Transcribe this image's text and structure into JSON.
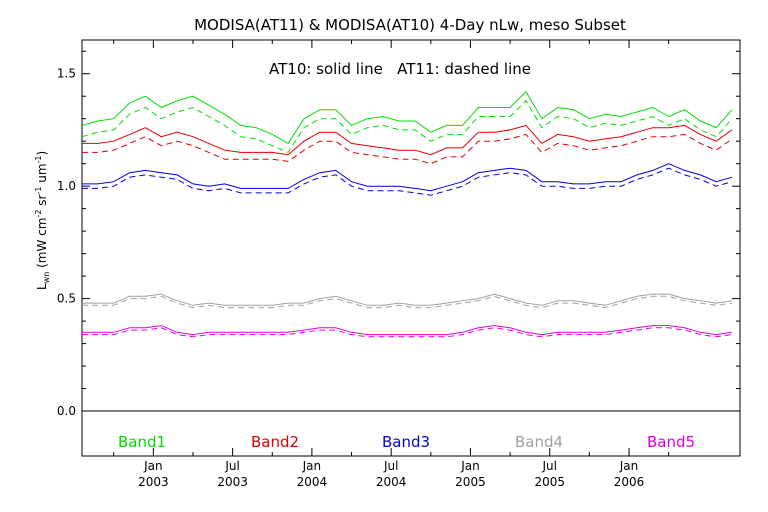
{
  "chart_data": {
    "type": "line",
    "title": "MODISA(AT11) & MODISA(AT10) 4-Day nLw, meso Subset",
    "annotation": "AT10: solid line   AT11: dashed line",
    "ylabel_main": "L",
    "ylabel_sub": "wn",
    "ylabel_rest": " (mW cm",
    "ylabel_exp1": "-2",
    "ylabel_mid1": " sr",
    "ylabel_exp2": "-1",
    "ylabel_mid2": " um",
    "ylabel_exp3": "-1",
    "ylabel_end": ")",
    "ylim": [
      -0.2,
      1.65
    ],
    "xlim": [
      2002.55,
      2006.7
    ],
    "grid": false,
    "legend_placement": "bottom",
    "yticks": [
      {
        "value": 0.0,
        "label": "0.0"
      },
      {
        "value": 0.5,
        "label": "0.5"
      },
      {
        "value": 1.0,
        "label": "1.0"
      },
      {
        "value": 1.5,
        "label": "1.5"
      }
    ],
    "xticks": [
      {
        "value": 2003.0,
        "month": "Jan",
        "year": "2003"
      },
      {
        "value": 2003.5,
        "month": "Jul",
        "year": "2003"
      },
      {
        "value": 2004.0,
        "month": "Jan",
        "year": "2004"
      },
      {
        "value": 2004.5,
        "month": "Jul",
        "year": "2004"
      },
      {
        "value": 2005.0,
        "month": "Jan",
        "year": "2005"
      },
      {
        "value": 2005.5,
        "month": "Jul",
        "year": "2005"
      },
      {
        "value": 2006.0,
        "month": "Jan",
        "year": "2006"
      }
    ],
    "x": [
      2002.55,
      2002.65,
      2002.75,
      2002.85,
      2002.95,
      2003.05,
      2003.15,
      2003.25,
      2003.35,
      2003.45,
      2003.55,
      2003.65,
      2003.75,
      2003.85,
      2003.95,
      2004.05,
      2004.15,
      2004.25,
      2004.35,
      2004.45,
      2004.55,
      2004.65,
      2004.75,
      2004.85,
      2004.95,
      2005.05,
      2005.15,
      2005.25,
      2005.35,
      2005.45,
      2005.55,
      2005.65,
      2005.75,
      2005.85,
      2005.95,
      2006.05,
      2006.15,
      2006.25,
      2006.35,
      2006.45,
      2006.55,
      2006.65
    ],
    "series": [
      {
        "name": "Band1",
        "color": "#00dd00",
        "at10": [
          1.27,
          1.29,
          1.3,
          1.37,
          1.4,
          1.35,
          1.38,
          1.4,
          1.36,
          1.32,
          1.27,
          1.26,
          1.23,
          1.19,
          1.3,
          1.34,
          1.34,
          1.27,
          1.3,
          1.31,
          1.29,
          1.29,
          1.24,
          1.27,
          1.27,
          1.35,
          1.35,
          1.35,
          1.42,
          1.3,
          1.35,
          1.34,
          1.3,
          1.32,
          1.31,
          1.33,
          1.35,
          1.31,
          1.34,
          1.29,
          1.26,
          1.34
        ],
        "at11": [
          1.22,
          1.24,
          1.25,
          1.32,
          1.35,
          1.3,
          1.33,
          1.35,
          1.31,
          1.27,
          1.22,
          1.21,
          1.18,
          1.15,
          1.26,
          1.3,
          1.3,
          1.23,
          1.26,
          1.27,
          1.25,
          1.25,
          1.2,
          1.23,
          1.23,
          1.31,
          1.31,
          1.31,
          1.38,
          1.26,
          1.31,
          1.3,
          1.26,
          1.28,
          1.27,
          1.29,
          1.31,
          1.27,
          1.3,
          1.25,
          1.22,
          1.3
        ]
      },
      {
        "name": "Band2",
        "color": "#dd0000",
        "at10": [
          1.19,
          1.19,
          1.2,
          1.23,
          1.26,
          1.22,
          1.24,
          1.22,
          1.19,
          1.16,
          1.15,
          1.15,
          1.15,
          1.14,
          1.2,
          1.24,
          1.24,
          1.19,
          1.18,
          1.17,
          1.16,
          1.16,
          1.14,
          1.17,
          1.17,
          1.24,
          1.24,
          1.25,
          1.27,
          1.19,
          1.23,
          1.22,
          1.2,
          1.21,
          1.22,
          1.24,
          1.26,
          1.26,
          1.27,
          1.23,
          1.2,
          1.25
        ],
        "at11": [
          1.15,
          1.15,
          1.16,
          1.19,
          1.22,
          1.18,
          1.2,
          1.18,
          1.15,
          1.12,
          1.12,
          1.12,
          1.12,
          1.11,
          1.16,
          1.2,
          1.2,
          1.15,
          1.14,
          1.13,
          1.12,
          1.12,
          1.1,
          1.13,
          1.13,
          1.2,
          1.2,
          1.21,
          1.23,
          1.15,
          1.19,
          1.18,
          1.16,
          1.17,
          1.18,
          1.2,
          1.22,
          1.22,
          1.23,
          1.19,
          1.16,
          1.21
        ]
      },
      {
        "name": "Band3",
        "color": "#0000dd",
        "at10": [
          1.01,
          1.01,
          1.02,
          1.06,
          1.07,
          1.06,
          1.05,
          1.01,
          1.0,
          1.01,
          0.99,
          0.99,
          0.99,
          0.99,
          1.03,
          1.06,
          1.07,
          1.02,
          1.0,
          1.0,
          1.0,
          0.99,
          0.98,
          1.0,
          1.02,
          1.06,
          1.07,
          1.08,
          1.07,
          1.02,
          1.02,
          1.01,
          1.01,
          1.02,
          1.02,
          1.05,
          1.07,
          1.1,
          1.07,
          1.05,
          1.02,
          1.04
        ],
        "at11": [
          0.99,
          0.99,
          1.0,
          1.04,
          1.05,
          1.04,
          1.03,
          0.99,
          0.98,
          0.99,
          0.97,
          0.97,
          0.97,
          0.97,
          1.01,
          1.04,
          1.05,
          1.0,
          0.98,
          0.98,
          0.98,
          0.97,
          0.96,
          0.98,
          1.0,
          1.04,
          1.05,
          1.06,
          1.05,
          1.0,
          1.0,
          0.99,
          0.99,
          1.0,
          1.0,
          1.03,
          1.05,
          1.08,
          1.05,
          1.03,
          1.0,
          1.02
        ]
      },
      {
        "name": "Band4",
        "color": "#a0a0a0",
        "at10": [
          0.48,
          0.48,
          0.48,
          0.51,
          0.51,
          0.52,
          0.49,
          0.47,
          0.48,
          0.47,
          0.47,
          0.47,
          0.47,
          0.48,
          0.48,
          0.5,
          0.51,
          0.49,
          0.47,
          0.47,
          0.48,
          0.47,
          0.47,
          0.48,
          0.49,
          0.5,
          0.52,
          0.5,
          0.48,
          0.47,
          0.49,
          0.49,
          0.48,
          0.47,
          0.49,
          0.51,
          0.52,
          0.52,
          0.5,
          0.49,
          0.48,
          0.49
        ],
        "at11": [
          0.47,
          0.47,
          0.47,
          0.5,
          0.5,
          0.51,
          0.48,
          0.46,
          0.47,
          0.46,
          0.46,
          0.46,
          0.46,
          0.47,
          0.47,
          0.49,
          0.5,
          0.48,
          0.46,
          0.46,
          0.47,
          0.46,
          0.46,
          0.47,
          0.48,
          0.49,
          0.51,
          0.49,
          0.47,
          0.46,
          0.48,
          0.48,
          0.47,
          0.46,
          0.48,
          0.5,
          0.51,
          0.51,
          0.49,
          0.48,
          0.47,
          0.48
        ]
      },
      {
        "name": "Band5",
        "color": "#dd00dd",
        "at10": [
          0.35,
          0.35,
          0.35,
          0.37,
          0.37,
          0.38,
          0.35,
          0.34,
          0.35,
          0.35,
          0.35,
          0.35,
          0.35,
          0.35,
          0.36,
          0.37,
          0.37,
          0.35,
          0.34,
          0.34,
          0.34,
          0.34,
          0.34,
          0.34,
          0.35,
          0.37,
          0.38,
          0.37,
          0.35,
          0.34,
          0.35,
          0.35,
          0.35,
          0.35,
          0.36,
          0.37,
          0.38,
          0.38,
          0.37,
          0.35,
          0.34,
          0.35
        ],
        "at11": [
          0.34,
          0.34,
          0.34,
          0.36,
          0.36,
          0.37,
          0.34,
          0.33,
          0.34,
          0.34,
          0.34,
          0.34,
          0.34,
          0.34,
          0.35,
          0.36,
          0.36,
          0.34,
          0.33,
          0.33,
          0.33,
          0.33,
          0.33,
          0.33,
          0.34,
          0.36,
          0.37,
          0.36,
          0.34,
          0.33,
          0.34,
          0.34,
          0.34,
          0.34,
          0.35,
          0.36,
          0.37,
          0.37,
          0.36,
          0.34,
          0.33,
          0.34
        ]
      }
    ]
  }
}
